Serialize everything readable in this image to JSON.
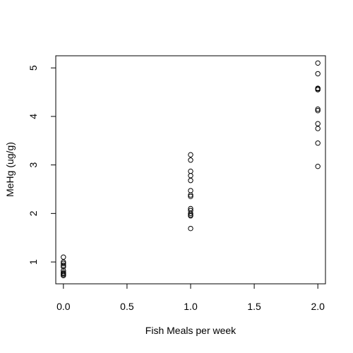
{
  "chart_data": {
    "type": "scatter",
    "title": "",
    "xlabel": "Fish Meals per week",
    "ylabel": "MeHg (ug/g)",
    "xlim": [
      -0.06,
      2.06
    ],
    "ylim": [
      0.55,
      5.25
    ],
    "x_ticks": [
      0.0,
      0.5,
      1.0,
      1.5,
      2.0
    ],
    "x_tick_labels": [
      "0.0",
      "0.5",
      "1.0",
      "1.5",
      "2.0"
    ],
    "y_ticks": [
      1,
      2,
      3,
      4,
      5
    ],
    "y_tick_labels": [
      "1",
      "2",
      "3",
      "4",
      "5"
    ],
    "grid": false,
    "legend": "none",
    "marker": "open-circle",
    "point_color": "#000000",
    "series": [
      {
        "x": [
          0,
          0,
          0,
          0,
          0,
          0,
          0,
          0,
          0,
          0,
          1,
          1,
          1,
          1,
          1,
          1,
          1,
          1,
          1,
          1,
          1,
          1,
          1,
          1,
          2,
          2,
          2,
          2,
          2,
          2,
          2,
          2,
          2,
          2,
          2
        ],
        "y": [
          1.1,
          1.0,
          0.97,
          0.93,
          0.9,
          0.82,
          0.78,
          0.76,
          0.74,
          0.72,
          3.21,
          3.1,
          2.87,
          2.78,
          2.68,
          2.47,
          2.38,
          2.35,
          2.1,
          2.06,
          2.0,
          1.97,
          1.95,
          1.69,
          5.1,
          4.88,
          4.58,
          4.55,
          4.15,
          4.12,
          3.85,
          3.75,
          3.45,
          2.97,
          4.57
        ]
      }
    ]
  }
}
